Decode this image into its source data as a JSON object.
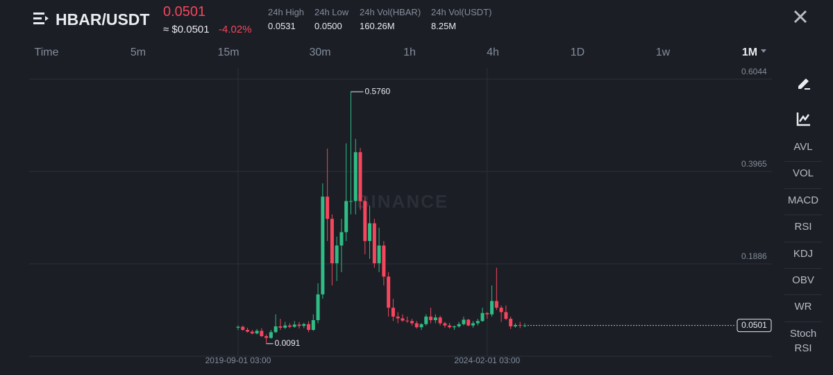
{
  "header": {
    "pair": "HBAR/USDT",
    "price": "0.0501",
    "price_usd": "≈ $0.0501",
    "change": "-4.02%",
    "stats": [
      {
        "label": "24h High",
        "value": "0.0531"
      },
      {
        "label": "24h Low",
        "value": "0.0500"
      },
      {
        "label": "24h Vol(HBAR)",
        "value": "160.26M"
      },
      {
        "label": "24h Vol(USDT)",
        "value": "8.25M"
      }
    ]
  },
  "tabs": [
    "Time",
    "5m",
    "15m",
    "30m",
    "1h",
    "4h",
    "1D",
    "1w",
    "1M"
  ],
  "indicators": [
    "AVL",
    "VOL",
    "MACD",
    "RSI",
    "KDJ",
    "OBV",
    "WR",
    "Stoch RSI"
  ],
  "chart_data": {
    "type": "candlestick",
    "watermark": "BINANCE",
    "up_color": "#2ebd85",
    "down_color": "#f6465d",
    "categories": [
      "2019-09-01 03:00",
      null,
      null,
      null,
      null,
      null,
      null,
      null,
      null,
      null,
      null,
      null,
      null,
      null,
      null,
      null,
      null,
      null,
      null,
      null,
      null,
      null,
      null,
      null,
      null,
      null,
      null,
      null,
      null,
      null,
      null,
      null,
      null,
      null,
      null,
      null,
      null,
      null,
      null,
      null,
      null,
      null,
      null,
      null,
      null,
      null,
      null,
      null,
      null,
      null,
      null,
      null,
      null,
      "2024-02-01 03:00",
      null,
      null,
      null,
      null,
      null,
      null,
      null,
      null
    ],
    "open": [
      0.045,
      0.047,
      0.04,
      0.036,
      0.032,
      0.038,
      0.026,
      0.022,
      0.035,
      0.048,
      0.045,
      0.05,
      0.047,
      0.052,
      0.049,
      0.053,
      0.04,
      0.062,
      0.12,
      0.34,
      0.29,
      0.19,
      0.23,
      0.26,
      0.33,
      0.33,
      0.44,
      0.33,
      0.24,
      0.28,
      0.19,
      0.23,
      0.16,
      0.09,
      0.07,
      0.066,
      0.061,
      0.06,
      0.055,
      0.046,
      0.053,
      0.07,
      0.062,
      0.068,
      0.055,
      0.05,
      0.046,
      0.048,
      0.053,
      0.063,
      0.05,
      0.055,
      0.06,
      0.078,
      0.075,
      0.105,
      0.09,
      0.08,
      0.065,
      0.048,
      0.051,
      0.05
    ],
    "high": [
      0.05,
      0.05,
      0.045,
      0.04,
      0.042,
      0.044,
      0.03,
      0.04,
      0.075,
      0.065,
      0.058,
      0.055,
      0.06,
      0.058,
      0.056,
      0.06,
      0.075,
      0.145,
      0.37,
      0.448,
      0.3,
      0.25,
      0.29,
      0.46,
      0.576,
      0.47,
      0.45,
      0.34,
      0.32,
      0.29,
      0.27,
      0.24,
      0.17,
      0.11,
      0.08,
      0.075,
      0.07,
      0.065,
      0.06,
      0.055,
      0.075,
      0.09,
      0.075,
      0.072,
      0.058,
      0.056,
      0.05,
      0.058,
      0.07,
      0.065,
      0.06,
      0.065,
      0.09,
      0.08,
      0.14,
      0.18,
      0.095,
      0.095,
      0.07,
      0.055,
      0.058,
      0.055
    ],
    "low": [
      0.04,
      0.038,
      0.034,
      0.03,
      0.03,
      0.024,
      0.0091,
      0.02,
      0.033,
      0.04,
      0.042,
      0.044,
      0.045,
      0.043,
      0.044,
      0.035,
      0.038,
      0.055,
      0.11,
      0.24,
      0.14,
      0.15,
      0.17,
      0.24,
      0.3,
      0.3,
      0.31,
      0.21,
      0.2,
      0.18,
      0.17,
      0.14,
      0.07,
      0.06,
      0.055,
      0.058,
      0.056,
      0.05,
      0.043,
      0.04,
      0.05,
      0.055,
      0.055,
      0.05,
      0.045,
      0.043,
      0.04,
      0.045,
      0.05,
      0.048,
      0.045,
      0.05,
      0.058,
      0.065,
      0.07,
      0.085,
      0.058,
      0.062,
      0.042,
      0.045,
      0.044,
      0.046
    ],
    "close": [
      0.047,
      0.04,
      0.036,
      0.032,
      0.038,
      0.026,
      0.022,
      0.035,
      0.048,
      0.045,
      0.05,
      0.047,
      0.052,
      0.049,
      0.053,
      0.04,
      0.062,
      0.12,
      0.34,
      0.29,
      0.19,
      0.23,
      0.26,
      0.33,
      0.33,
      0.44,
      0.33,
      0.24,
      0.28,
      0.19,
      0.23,
      0.16,
      0.09,
      0.07,
      0.066,
      0.061,
      0.06,
      0.055,
      0.046,
      0.053,
      0.07,
      0.062,
      0.068,
      0.055,
      0.05,
      0.046,
      0.048,
      0.053,
      0.063,
      0.05,
      0.055,
      0.06,
      0.078,
      0.075,
      0.105,
      0.09,
      0.08,
      0.065,
      0.048,
      0.051,
      0.05,
      0.0501
    ],
    "high_label": "0.5760",
    "low_label": "0.0091",
    "ylim": [
      -0.0193,
      0.6294
    ],
    "yticks": [
      0.1886,
      0.3965,
      0.6044
    ],
    "grid": true
  }
}
